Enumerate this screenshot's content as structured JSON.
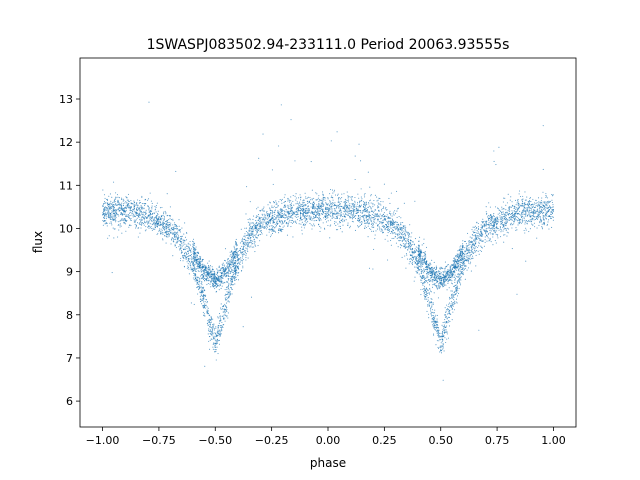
{
  "chart_data": {
    "type": "scatter",
    "title": "1SWASPJ083502.94-233111.0 Period 20063.93555s",
    "xlabel": "phase",
    "ylabel": "flux",
    "xlim": [
      -1.1,
      1.1
    ],
    "ylim": [
      5.4,
      13.95
    ],
    "x_ticks": [
      -1.0,
      -0.75,
      -0.5,
      -0.25,
      0.0,
      0.25,
      0.5,
      0.75,
      1.0
    ],
    "x_tick_labels": [
      "−1.00",
      "−0.75",
      "−0.50",
      "−0.25",
      "0.00",
      "0.25",
      "0.50",
      "0.75",
      "1.00"
    ],
    "y_ticks": [
      6,
      7,
      8,
      9,
      10,
      11,
      12,
      13
    ],
    "y_tick_labels": [
      "6",
      "7",
      "8",
      "9",
      "10",
      "11",
      "12",
      "13"
    ],
    "grid": false,
    "point_color": "#1f77b4",
    "series": [
      {
        "x": [
          -1.0,
          -0.9,
          -0.8,
          -0.7,
          -0.65,
          -0.6,
          -0.55,
          -0.5,
          -0.45,
          -0.4,
          -0.35,
          -0.3,
          -0.2,
          -0.1,
          0.0,
          0.1,
          0.2,
          0.3,
          0.35,
          0.4,
          0.45,
          0.5,
          0.55,
          0.6,
          0.65,
          0.7,
          0.8,
          0.9,
          1.0
        ],
        "y": [
          10.4,
          10.4,
          10.3,
          10.0,
          9.7,
          9.2,
          8.3,
          7.3,
          8.3,
          9.2,
          9.8,
          10.1,
          10.3,
          10.4,
          10.45,
          10.4,
          10.3,
          10.1,
          9.7,
          9.2,
          8.3,
          7.3,
          8.3,
          9.2,
          9.7,
          10.0,
          10.3,
          10.4,
          10.4
        ]
      },
      {
        "x": [
          -0.6,
          -0.55,
          -0.5,
          -0.45,
          -0.4,
          0.4,
          0.45,
          0.5,
          0.55,
          0.6
        ],
        "y": [
          9.5,
          9.0,
          8.8,
          9.0,
          9.5,
          9.5,
          9.0,
          8.8,
          9.0,
          9.5
        ]
      }
    ]
  }
}
